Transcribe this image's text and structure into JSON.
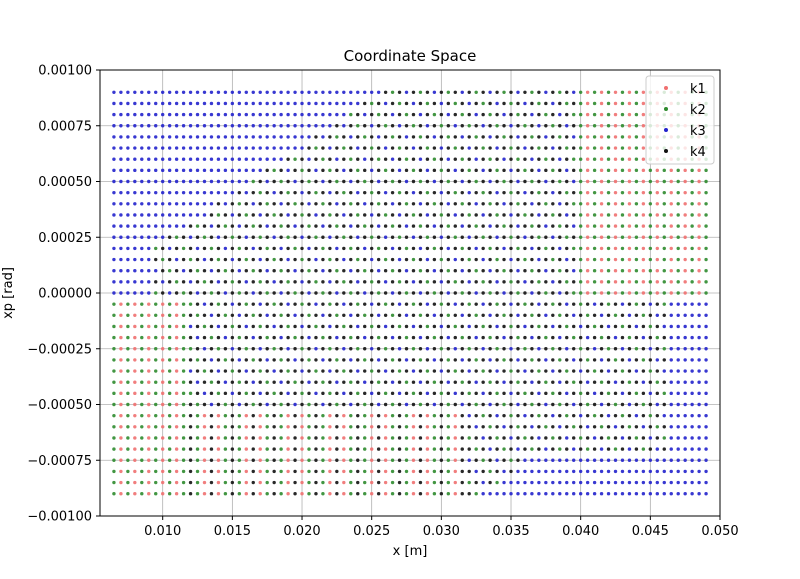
{
  "chart_data": {
    "type": "scatter",
    "title": "Coordinate Space",
    "xlabel": "x [m]",
    "ylabel": "xp [rad]",
    "xlim": [
      0.0055,
      0.05
    ],
    "ylim": [
      -0.001,
      0.001
    ],
    "x_ticks": [
      "0.010",
      "0.015",
      "0.020",
      "0.025",
      "0.030",
      "0.035",
      "0.040",
      "0.045",
      "0.050"
    ],
    "x_tick_values": [
      0.01,
      0.015,
      0.02,
      0.025,
      0.03,
      0.035,
      0.04,
      0.045,
      0.05
    ],
    "y_ticks": [
      "0.00100",
      "0.00075",
      "0.00050",
      "0.00025",
      "0.00000",
      "−0.00025",
      "−0.00050",
      "−0.00075",
      "−0.00100"
    ],
    "y_tick_values": [
      0.001,
      0.00075,
      0.0005,
      0.00025,
      0.0,
      -0.00025,
      -0.0005,
      -0.00075,
      -0.001
    ],
    "grid": true,
    "legend_position": "top-right",
    "grid_spec": {
      "x_min": 0.0065,
      "x_max": 0.049,
      "x_step": 0.0005,
      "y_min": -0.0009,
      "y_max": 0.0009,
      "y_step": 5e-05
    },
    "series": [
      {
        "name": "k1",
        "color": "#f07070",
        "region": "lower-left",
        "bounds": {
          "x": [
            0.0065,
            0.041
          ],
          "y": [
            -0.0009,
            0.0009
          ]
        }
      },
      {
        "name": "k2",
        "color": "#2e8b2e",
        "region": "right",
        "bounds": {
          "x": [
            0.0065,
            0.049
          ],
          "y": [
            -0.0009,
            0.0009
          ]
        }
      },
      {
        "name": "k3",
        "color": "#2222cc",
        "region": "upper-left",
        "bounds": {
          "x": [
            0.0065,
            0.049
          ],
          "y": [
            -0.0009,
            0.0009
          ]
        }
      },
      {
        "name": "k4",
        "color": "#111111",
        "region": "center",
        "bounds": {
          "x": [
            0.008,
            0.046
          ],
          "y": [
            -0.0009,
            0.0009
          ]
        }
      }
    ]
  }
}
